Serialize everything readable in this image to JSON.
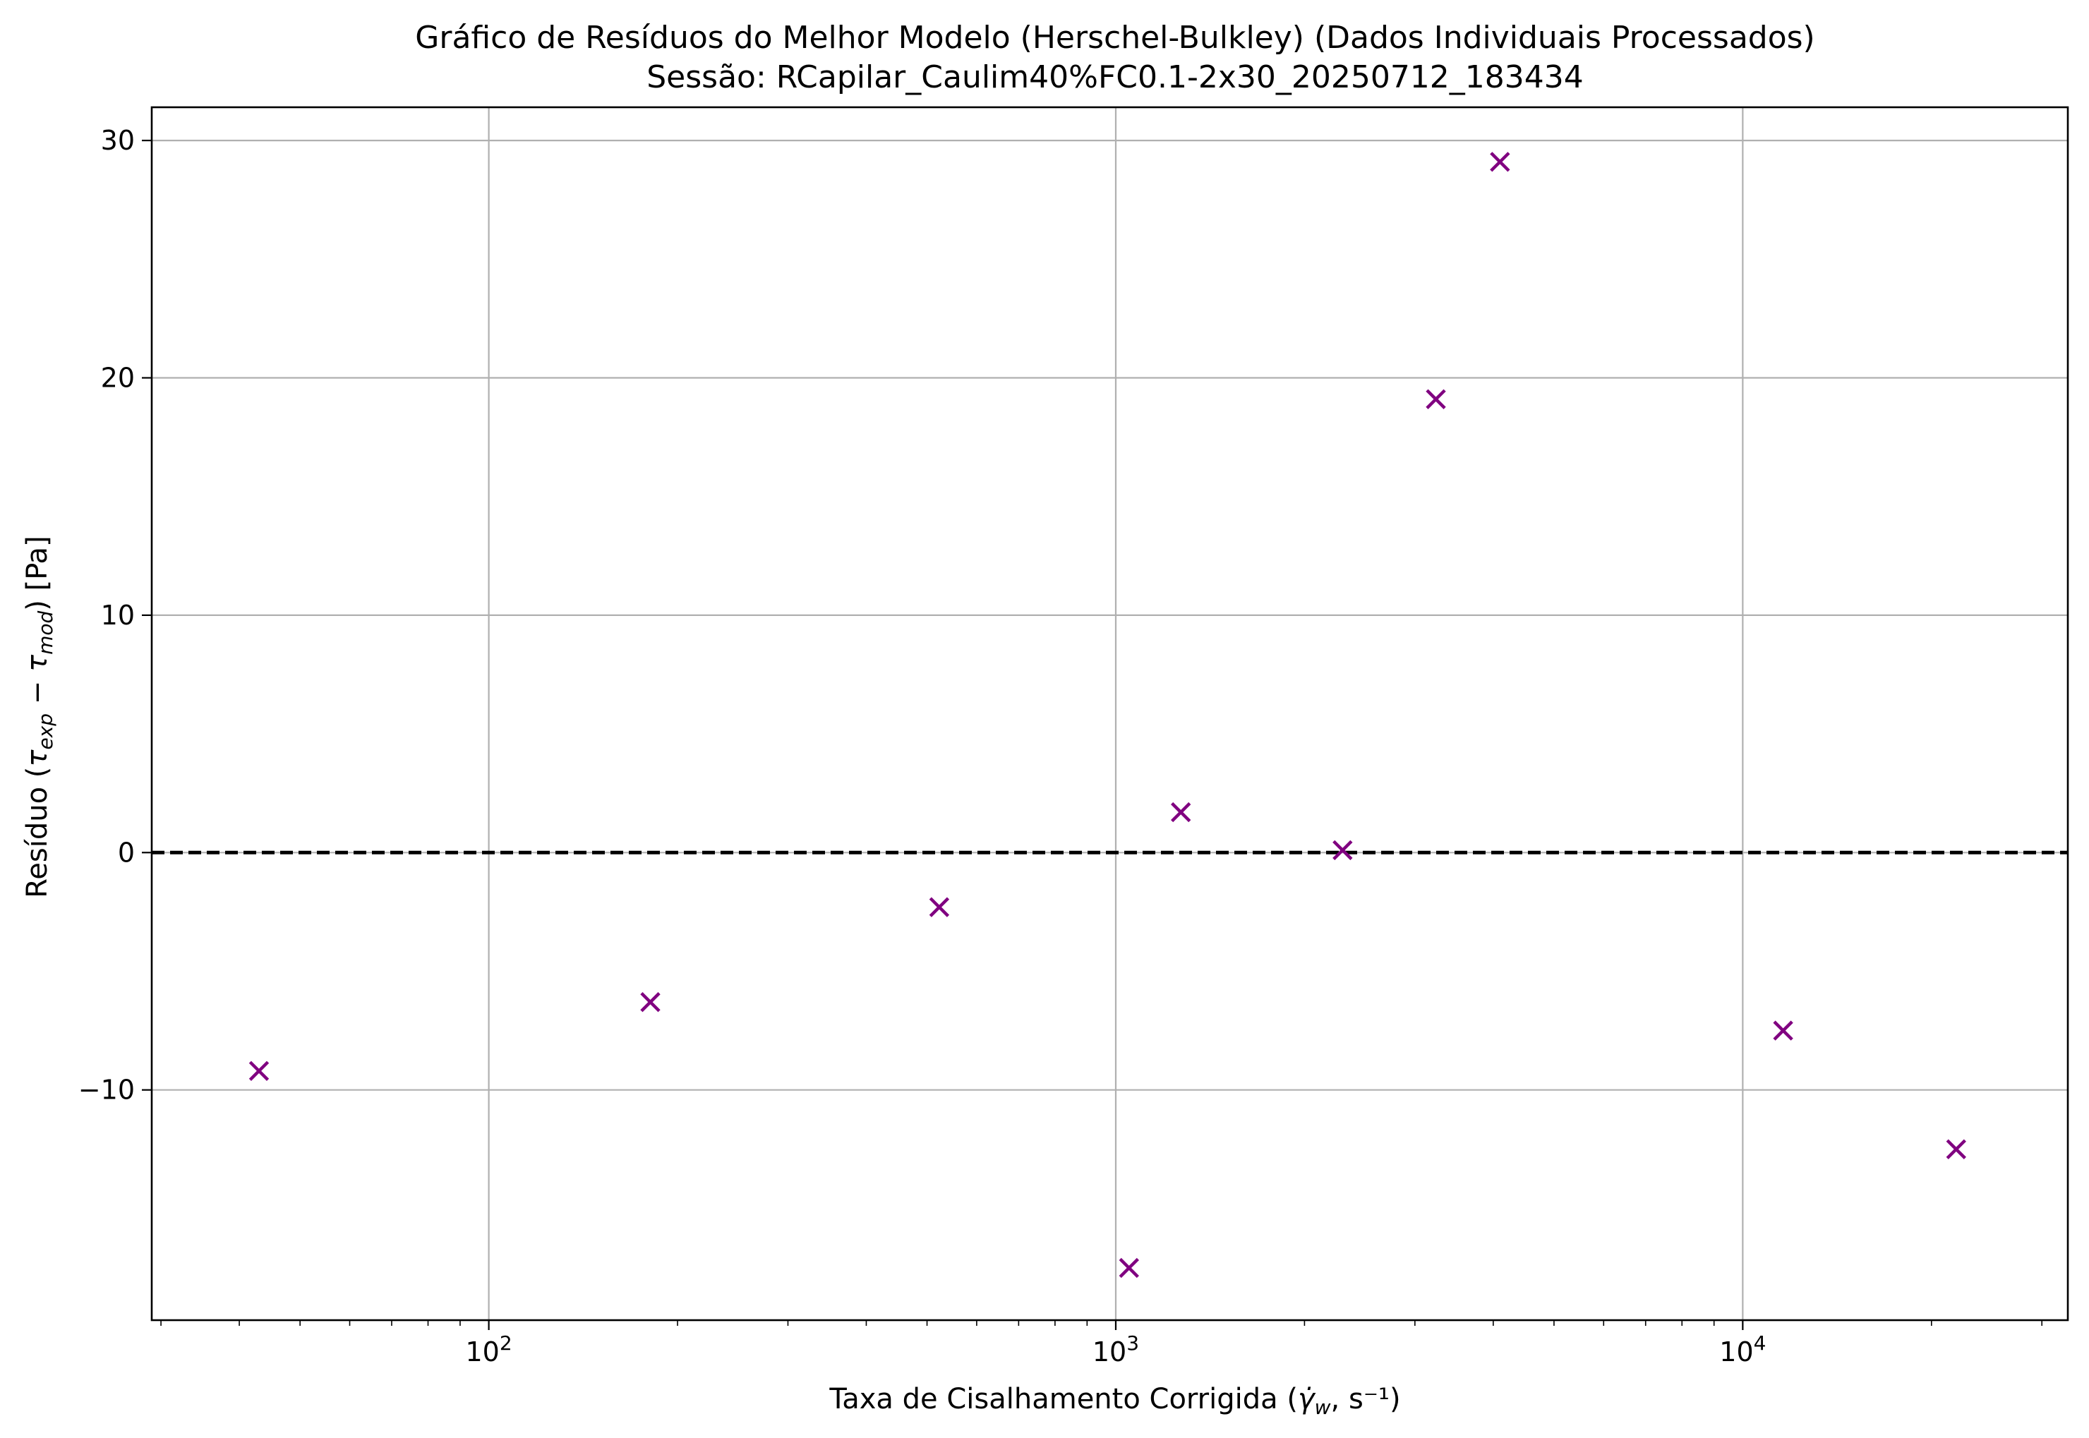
{
  "chart_data": {
    "type": "scatter",
    "title": "Gráfico de Resíduos do Melhor Modelo (Herschel-Bulkley) (Dados Individuais Processados)",
    "subtitle": "Sessão: RCapilar_Caulim40%FC0.1-2x30_20250712_183434",
    "xlabel": "Taxa de Cisalhamento Corrigida (γ̇w, s⁻¹)",
    "ylabel": "Resíduo (τexp − τmod) [Pa]",
    "x_scale": "log",
    "xlim": [
      29,
      33000
    ],
    "ylim": [
      -19.7,
      31.4
    ],
    "x_ticks": [
      {
        "value": 100,
        "base": "10",
        "exp": "2"
      },
      {
        "value": 1000,
        "base": "10",
        "exp": "3"
      },
      {
        "value": 10000,
        "base": "10",
        "exp": "4"
      }
    ],
    "y_ticks": [
      {
        "value": -10,
        "label": "−10"
      },
      {
        "value": 0,
        "label": "0"
      },
      {
        "value": 10,
        "label": "10"
      },
      {
        "value": 20,
        "label": "20"
      },
      {
        "value": 30,
        "label": "30"
      }
    ],
    "grid": true,
    "reference_line": {
      "y": 0,
      "style": "dashed",
      "color": "#000000"
    },
    "marker": "x",
    "marker_color": "#800080",
    "points": [
      {
        "x": 43,
        "y": -9.2
      },
      {
        "x": 181,
        "y": -6.3
      },
      {
        "x": 523,
        "y": -2.3
      },
      {
        "x": 1050,
        "y": -17.5
      },
      {
        "x": 1270,
        "y": 1.7
      },
      {
        "x": 2300,
        "y": 0.1
      },
      {
        "x": 3240,
        "y": 19.1
      },
      {
        "x": 4100,
        "y": 29.1
      },
      {
        "x": 11600,
        "y": -7.5
      },
      {
        "x": 21900,
        "y": -12.5
      }
    ]
  }
}
